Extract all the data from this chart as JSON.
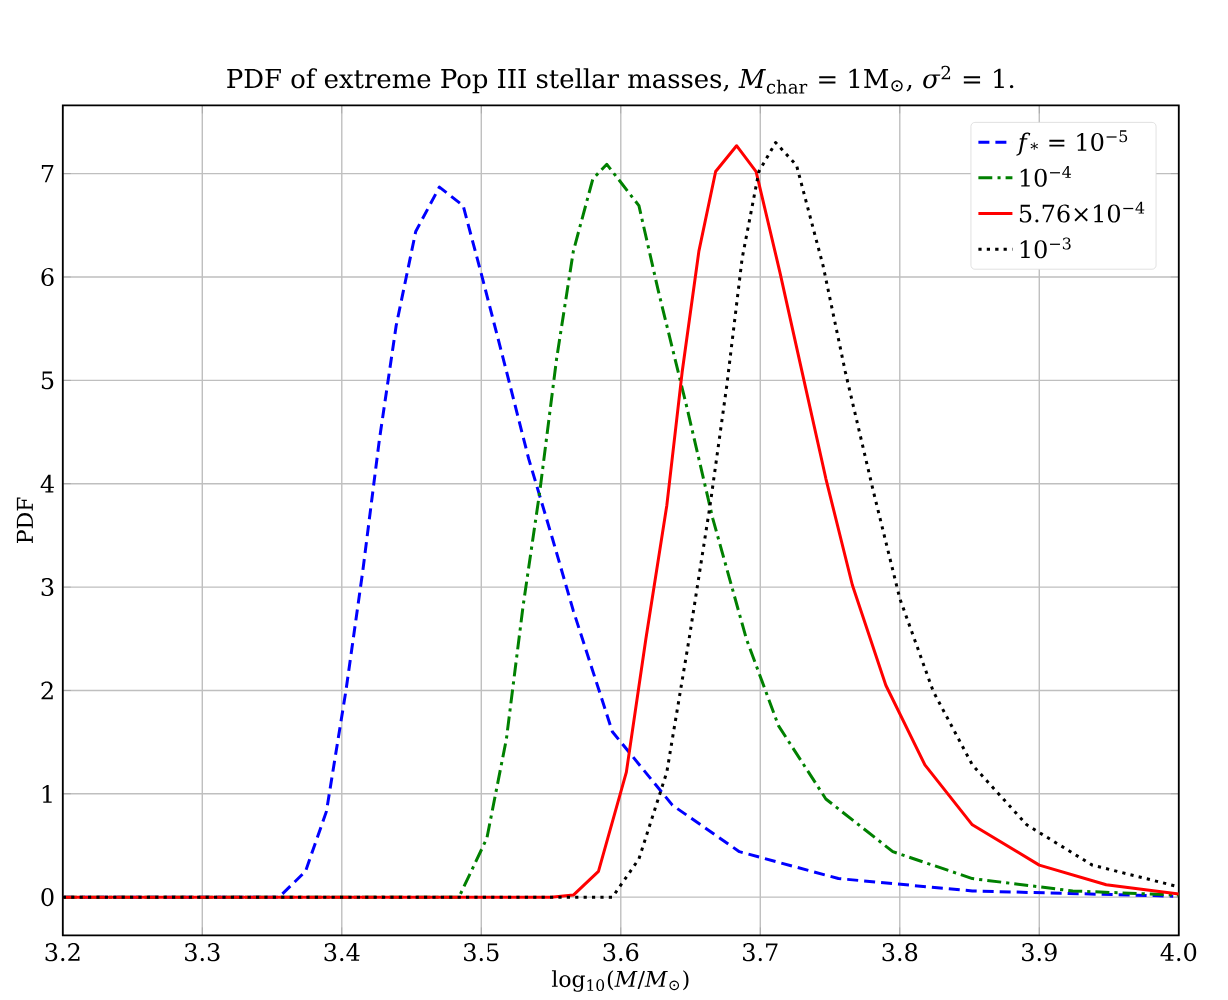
{
  "chart_data": {
    "type": "line",
    "title": "PDF of extreme Pop III stellar masses, *M*$_{char}$ = 1M$_{⊙}$, *σ*$^{2}$ = 1.",
    "xlabel": "log$_{10}$(*M*/*M*$_{⊙}$)",
    "ylabel": "PDF",
    "xlim": [
      3.2,
      4.0
    ],
    "xticks": [
      {
        "value": 3.2,
        "label": "3.2"
      },
      {
        "value": 3.3,
        "label": "3.3"
      },
      {
        "value": 3.4,
        "label": "3.4"
      },
      {
        "value": 3.5,
        "label": "3.5"
      },
      {
        "value": 3.6,
        "label": "3.6"
      },
      {
        "value": 3.7,
        "label": "3.7"
      },
      {
        "value": 3.8,
        "label": "3.8"
      },
      {
        "value": 3.9,
        "label": "3.9"
      },
      {
        "value": 4.0,
        "label": "4.0"
      }
    ],
    "ylim": [
      -0.37,
      7.66
    ],
    "yticks": [
      0,
      1,
      2,
      3,
      4,
      5,
      6,
      7
    ],
    "grid": true,
    "legend": "top right",
    "marker": "none",
    "series": [
      {
        "name": "*f*$_{*}$ = 10$^{−5}$",
        "color": "#0000ff",
        "line_style": "dashed",
        "x": [
          3.2,
          3.355,
          3.374,
          3.389,
          3.403,
          3.415,
          3.427,
          3.439,
          3.453,
          3.47,
          3.487,
          3.501,
          3.518,
          3.534,
          3.551,
          3.566,
          3.594,
          3.637,
          3.685,
          3.756,
          3.852,
          3.996
        ],
        "values": [
          0,
          0,
          0.25,
          0.83,
          2.0,
          3.15,
          4.43,
          5.53,
          6.44,
          6.87,
          6.69,
          5.98,
          5.09,
          4.24,
          3.47,
          2.77,
          1.6,
          0.89,
          0.44,
          0.18,
          0.06,
          0.01
        ]
      },
      {
        "name": "10$^{−4}$",
        "color": "#008000",
        "line_style": "dashdot",
        "x": [
          3.2,
          3.484,
          3.504,
          3.518,
          3.53,
          3.542,
          3.554,
          3.566,
          3.58,
          3.59,
          3.613,
          3.627,
          3.647,
          3.666,
          3.69,
          3.713,
          3.747,
          3.795,
          3.852,
          3.924,
          4.0
        ],
        "values": [
          0,
          0,
          0.57,
          1.53,
          2.82,
          3.93,
          5.21,
          6.25,
          6.95,
          7.09,
          6.69,
          5.86,
          4.76,
          3.66,
          2.5,
          1.66,
          0.95,
          0.44,
          0.18,
          0.06,
          0.02
        ]
      },
      {
        "name": "5.76×10$^{−4}$",
        "color": "#ff0000",
        "line_style": "solid",
        "x": [
          3.2,
          3.55,
          3.566,
          3.584,
          3.604,
          3.618,
          3.633,
          3.644,
          3.656,
          3.668,
          3.683,
          3.697,
          3.714,
          3.73,
          3.747,
          3.766,
          3.79,
          3.818,
          3.852,
          3.9,
          3.948,
          4.0
        ],
        "values": [
          0,
          0,
          0.02,
          0.25,
          1.21,
          2.5,
          3.79,
          5.08,
          6.25,
          7.02,
          7.27,
          7.02,
          6.05,
          5.08,
          4.05,
          3.02,
          2.05,
          1.28,
          0.7,
          0.31,
          0.12,
          0.03
        ]
      },
      {
        "name": "10$^{−3}$",
        "color": "#000000",
        "line_style": "dotted",
        "x": [
          3.2,
          3.594,
          3.613,
          3.633,
          3.649,
          3.664,
          3.676,
          3.687,
          3.699,
          3.711,
          3.726,
          3.745,
          3.761,
          3.781,
          3.8,
          3.824,
          3.852,
          3.891,
          3.938,
          4.0
        ],
        "values": [
          0,
          0,
          0.37,
          1.21,
          2.5,
          3.79,
          4.95,
          6.18,
          7.02,
          7.3,
          7.08,
          6.11,
          5.08,
          3.93,
          2.89,
          1.99,
          1.28,
          0.7,
          0.31,
          0.1
        ]
      }
    ]
  }
}
